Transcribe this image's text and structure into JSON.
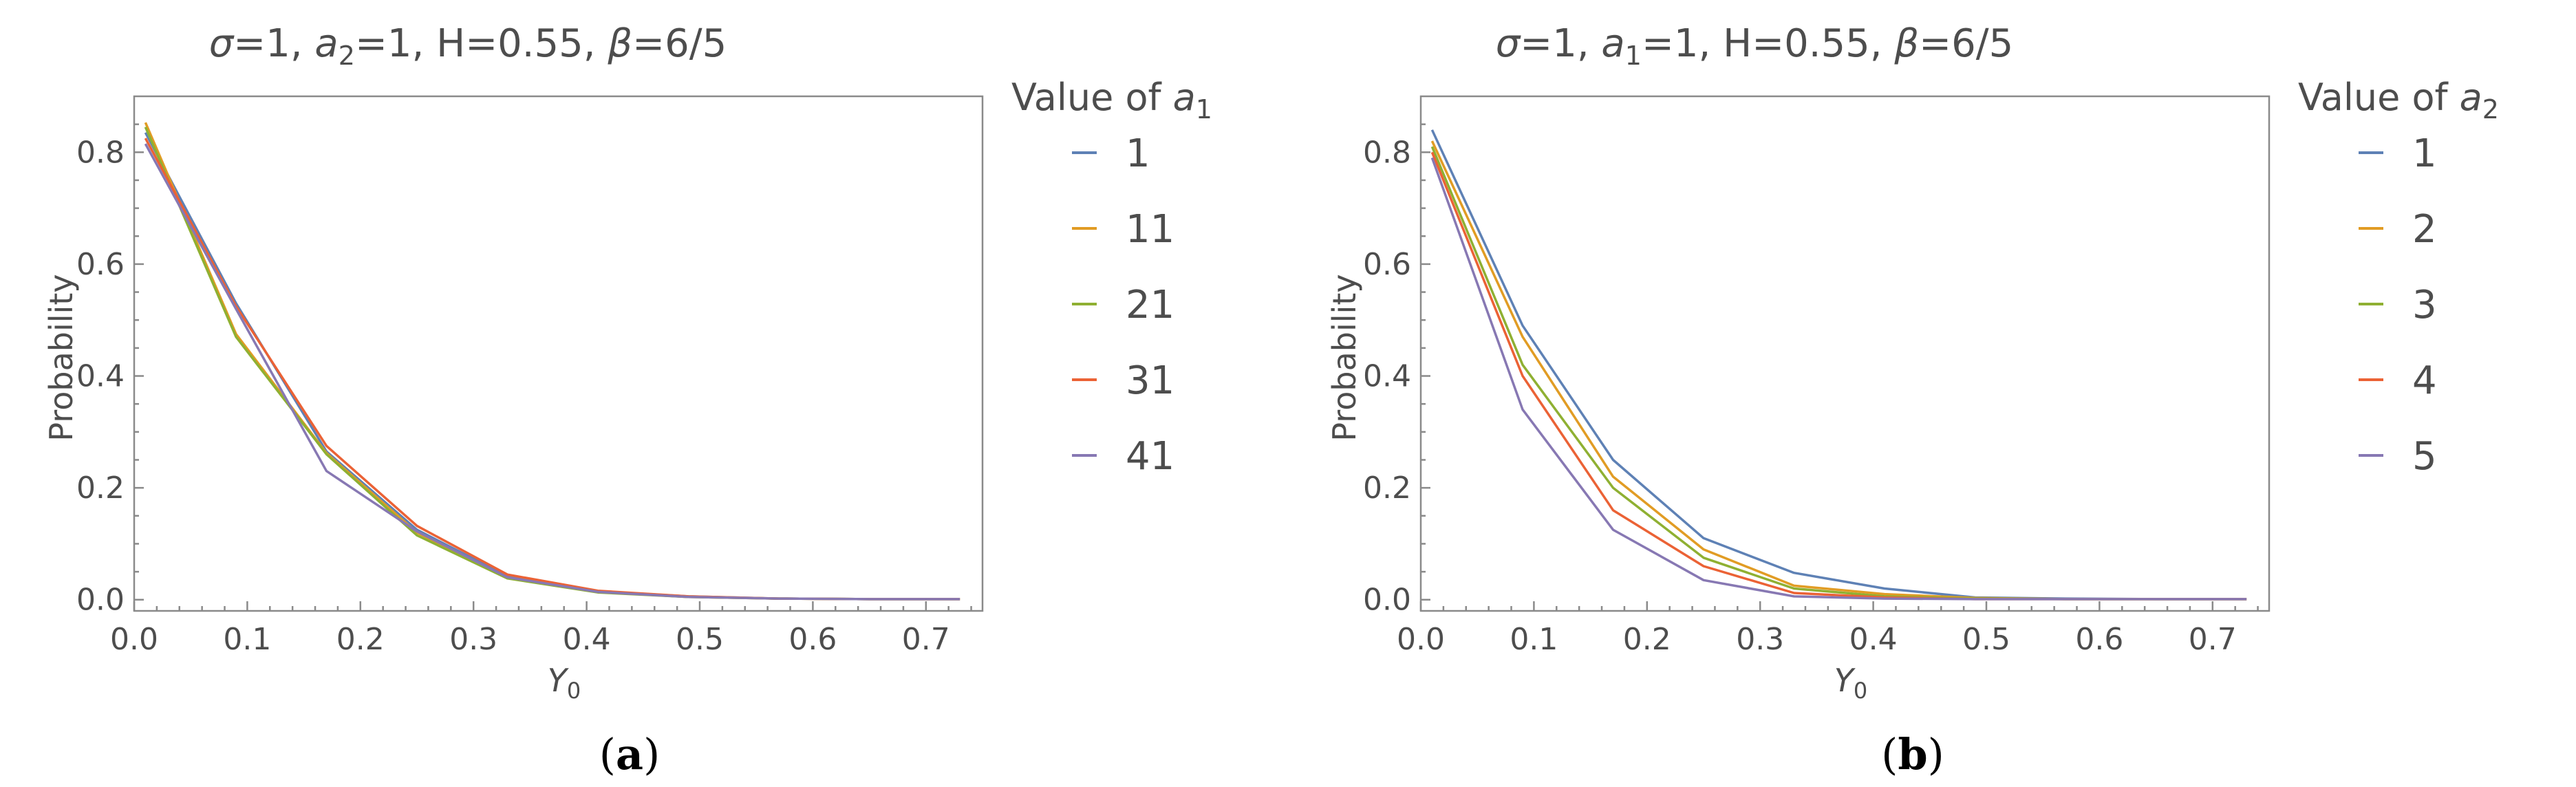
{
  "chart_data": [
    {
      "type": "line",
      "title_parts": [
        "σ",
        "=1, ",
        "a",
        "2",
        "=1, H=0.55, ",
        "β",
        "=6/5"
      ],
      "xlabel": "Y",
      "xlabel_sub": "0",
      "ylabel": "Probability",
      "xlim": [
        0,
        0.75
      ],
      "ylim": [
        -0.02,
        0.9
      ],
      "xticks": [
        "0.0",
        "0.1",
        "0.2",
        "0.3",
        "0.4",
        "0.5",
        "0.6",
        "0.7"
      ],
      "yticks": [
        "0.0",
        "0.2",
        "0.4",
        "0.6",
        "0.8"
      ],
      "legend_title": "Value of ",
      "legend_title_var": "a",
      "legend_title_sub": "1",
      "caption": "a",
      "x": [
        0.01,
        0.09,
        0.17,
        0.25,
        0.33,
        0.41,
        0.49,
        0.57,
        0.65,
        0.73
      ],
      "series": [
        {
          "name": "1",
          "color": "#5E81B5",
          "values": [
            0.835,
            0.53,
            0.265,
            0.125,
            0.042,
            0.015,
            0.006,
            0.002,
            0.001,
            0.001
          ]
        },
        {
          "name": "11",
          "color": "#E19C24",
          "values": [
            0.853,
            0.475,
            0.262,
            0.12,
            0.04,
            0.014,
            0.005,
            0.002,
            0.001,
            0.001
          ]
        },
        {
          "name": "21",
          "color": "#8FB032",
          "values": [
            0.845,
            0.47,
            0.26,
            0.115,
            0.038,
            0.013,
            0.005,
            0.002,
            0.001,
            0.001
          ]
        },
        {
          "name": "31",
          "color": "#EB6235",
          "values": [
            0.825,
            0.525,
            0.275,
            0.132,
            0.045,
            0.016,
            0.006,
            0.002,
            0.001,
            0.001
          ]
        },
        {
          "name": "41",
          "color": "#8778B3",
          "values": [
            0.815,
            0.52,
            0.23,
            0.122,
            0.04,
            0.014,
            0.005,
            0.002,
            0.001,
            0.001
          ]
        }
      ]
    },
    {
      "type": "line",
      "title_parts": [
        "σ",
        "=1, ",
        "a",
        "1",
        "=1, H=0.55, ",
        "β",
        "=6/5"
      ],
      "xlabel": "Y",
      "xlabel_sub": "0",
      "ylabel": "Probability",
      "xlim": [
        0,
        0.75
      ],
      "ylim": [
        -0.02,
        0.9
      ],
      "xticks": [
        "0.0",
        "0.1",
        "0.2",
        "0.3",
        "0.4",
        "0.5",
        "0.6",
        "0.7"
      ],
      "yticks": [
        "0.0",
        "0.2",
        "0.4",
        "0.6",
        "0.8"
      ],
      "legend_title": "Value of ",
      "legend_title_var": "a",
      "legend_title_sub": "2",
      "caption": "b",
      "x": [
        0.01,
        0.09,
        0.17,
        0.25,
        0.33,
        0.41,
        0.49,
        0.57,
        0.65,
        0.73
      ],
      "series": [
        {
          "name": "1",
          "color": "#5E81B5",
          "values": [
            0.84,
            0.49,
            0.25,
            0.11,
            0.048,
            0.02,
            0.004,
            0.002,
            0.001,
            0.001
          ]
        },
        {
          "name": "2",
          "color": "#E19C24",
          "values": [
            0.82,
            0.47,
            0.22,
            0.09,
            0.025,
            0.01,
            0.003,
            0.001,
            0.001,
            0.001
          ]
        },
        {
          "name": "3",
          "color": "#8FB032",
          "values": [
            0.81,
            0.42,
            0.2,
            0.075,
            0.02,
            0.006,
            0.002,
            0.001,
            0.001,
            0.001
          ]
        },
        {
          "name": "4",
          "color": "#EB6235",
          "values": [
            0.8,
            0.4,
            0.16,
            0.06,
            0.012,
            0.004,
            0.001,
            0.001,
            0.001,
            0.001
          ]
        },
        {
          "name": "5",
          "color": "#8778B3",
          "values": [
            0.79,
            0.34,
            0.125,
            0.035,
            0.006,
            0.002,
            0.001,
            0.001,
            0.001,
            0.001
          ]
        }
      ]
    }
  ]
}
